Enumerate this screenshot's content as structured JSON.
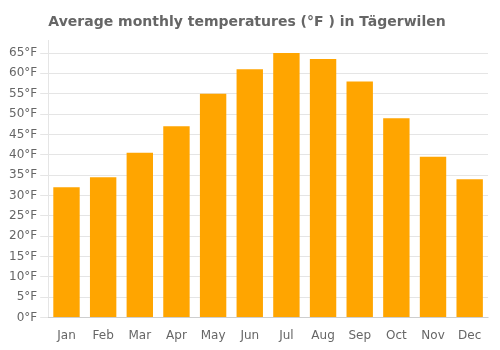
{
  "chart_data": {
    "type": "bar",
    "title": "Average monthly temperatures (°F ) in Tägerwilen",
    "categories": [
      "Jan",
      "Feb",
      "Mar",
      "Apr",
      "May",
      "Jun",
      "Jul",
      "Aug",
      "Sep",
      "Oct",
      "Nov",
      "Dec"
    ],
    "values": [
      32,
      34.5,
      40.5,
      47,
      55,
      61,
      65,
      63.5,
      58,
      49,
      39.5,
      34
    ],
    "color": "#FFA500",
    "ylim": [
      0,
      68
    ],
    "yticks": [
      {
        "value": 0,
        "label": "0°F"
      },
      {
        "value": 5,
        "label": "5°F"
      },
      {
        "value": 10,
        "label": "10°F"
      },
      {
        "value": 15,
        "label": "15°F"
      },
      {
        "value": 20,
        "label": "20°F"
      },
      {
        "value": 25,
        "label": "25°F"
      },
      {
        "value": 30,
        "label": "30°F"
      },
      {
        "value": 35,
        "label": "35°F"
      },
      {
        "value": 40,
        "label": "40°F"
      },
      {
        "value": 45,
        "label": "45°F"
      },
      {
        "value": 50,
        "label": "50°F"
      },
      {
        "value": 55,
        "label": "55°F"
      },
      {
        "value": 60,
        "label": "60°F"
      },
      {
        "value": 65,
        "label": "65°F"
      }
    ],
    "grid": true
  }
}
